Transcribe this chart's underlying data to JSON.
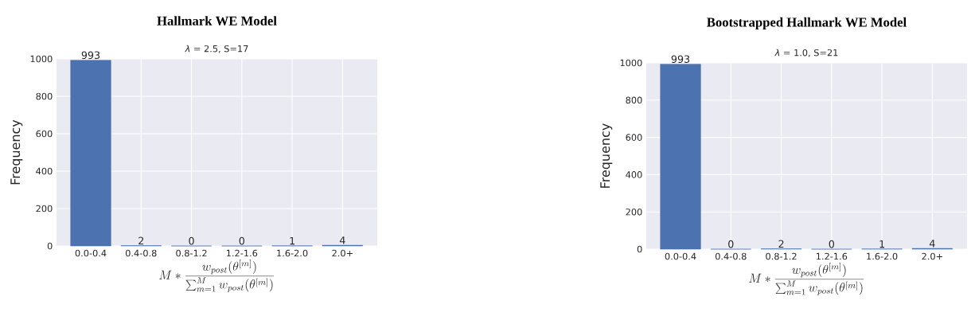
{
  "chart_data": [
    {
      "type": "bar",
      "title": "Hallmark WE Model",
      "subtitle": "*λ* = 2.5, S=17",
      "xlabel": "M*\\frac{w_{post}(\\theta^{[m]})}{\\sum_{m=1}^{M} w_{post}(\\theta^{[m]})}",
      "ylabel": "Frequency",
      "categories": [
        "0.0-0.4",
        "0.4-0.8",
        "0.8-1.2",
        "1.2-1.6",
        "1.6-2.0",
        "2.0+"
      ],
      "values": [
        993,
        2,
        0,
        0,
        1,
        4
      ],
      "color": "#4c72b0",
      "ylim": [
        0,
        1000
      ],
      "yticks": [
        0,
        200,
        400,
        600,
        800,
        1000
      ],
      "grid": true,
      "data_labels": true
    },
    {
      "type": "bar",
      "title": "Bootstrapped Hallmark WE Model",
      "subtitle": "*λ* = 1.0, S=21",
      "xlabel": "M*\\frac{w_{post}(\\theta^{[m]})}{\\sum_{m=1}^{M} w_{post}(\\theta^{[m]})}",
      "ylabel": "Frequency",
      "categories": [
        "0.0-0.4",
        "0.4-0.8",
        "0.8-1.2",
        "1.2-1.6",
        "1.6-2.0",
        "2.0+"
      ],
      "values": [
        993,
        0,
        2,
        0,
        1,
        4
      ],
      "color": "#4c72b0",
      "ylim": [
        0,
        1000
      ],
      "yticks": [
        0,
        200,
        400,
        600,
        800,
        1000
      ],
      "grid": true,
      "data_labels": true
    }
  ]
}
